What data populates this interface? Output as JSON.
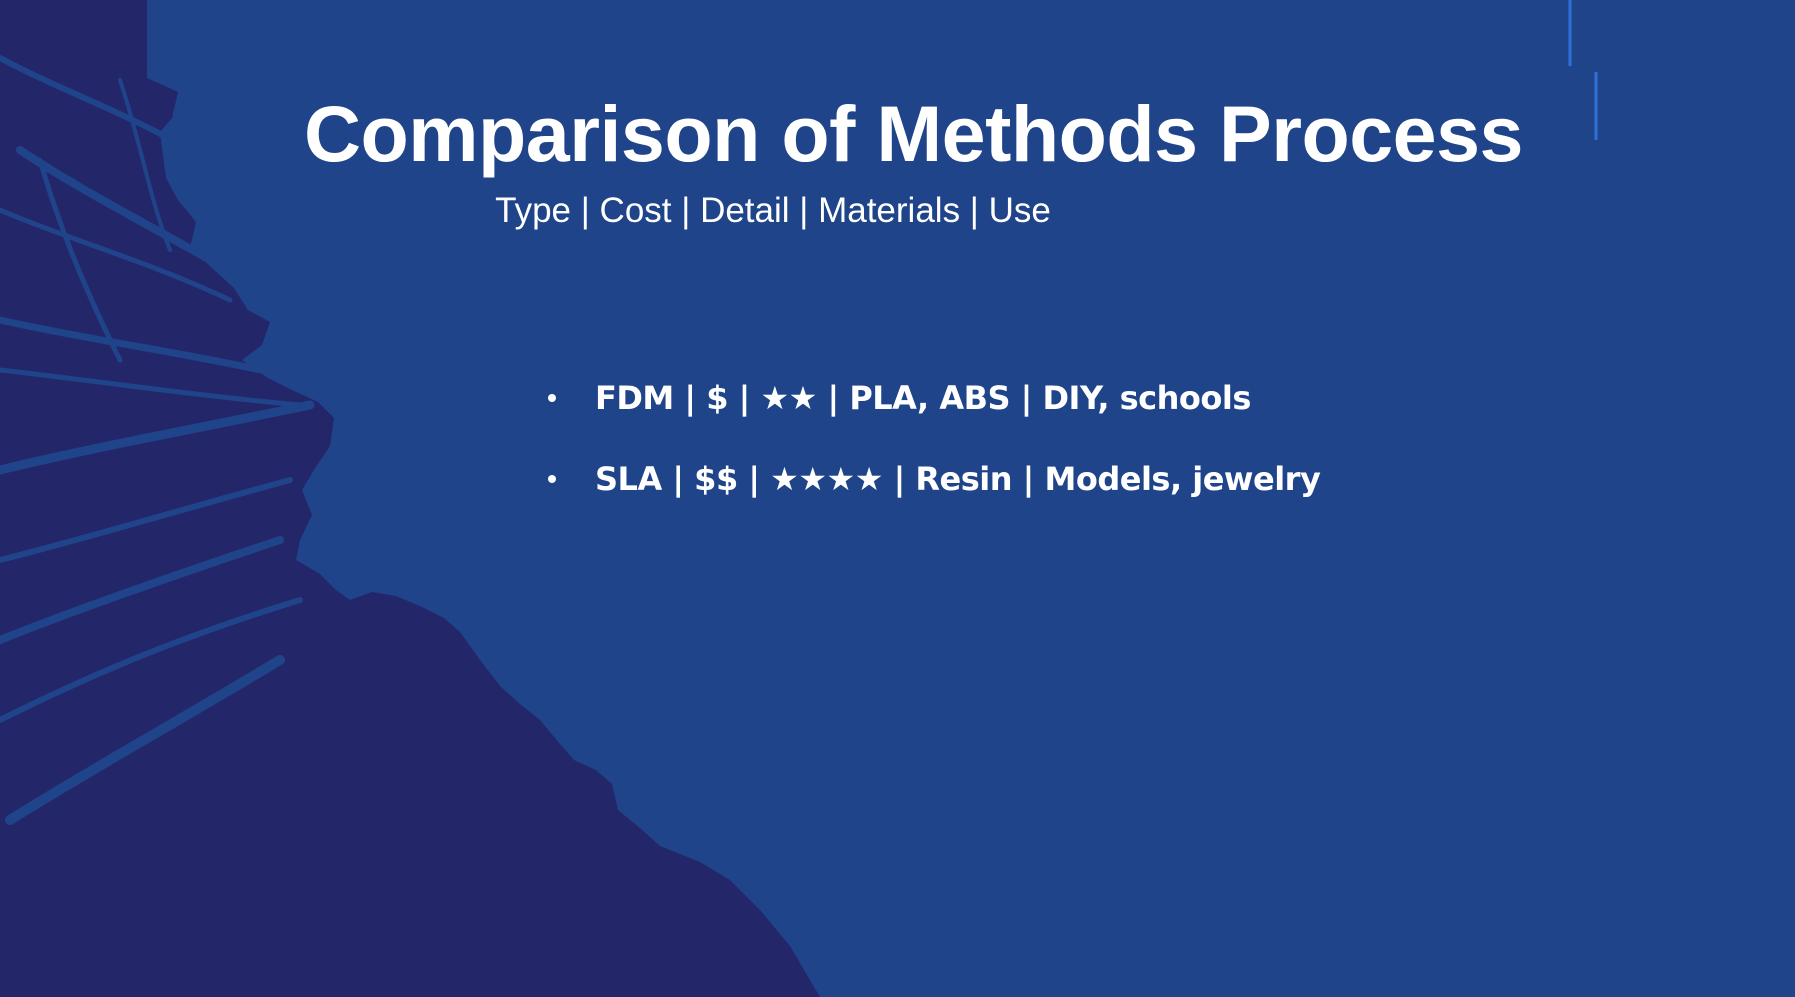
{
  "slide": {
    "title": "Comparison of Methods Process",
    "subtitle": "Type | Cost | Detail | Materials | Use",
    "bullets": [
      "FDM | $ | ★★ | PLA, ABS | DIY, schools",
      "SLA | $$ | ★★★★ | Resin | Models, jewelry"
    ]
  },
  "colors": {
    "background": "#1f448a",
    "shape_dark": "#24266a",
    "accent_line": "#2f6fd8",
    "text": "#ffffff"
  }
}
